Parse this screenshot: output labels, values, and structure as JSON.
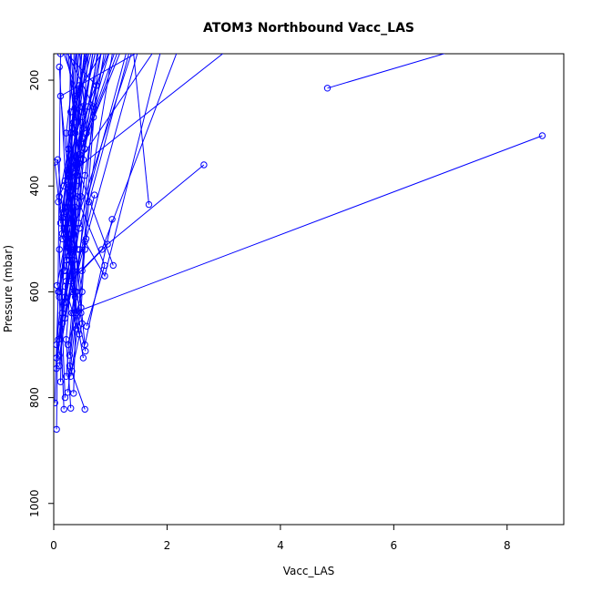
{
  "chart_data": {
    "type": "line",
    "title": "ATOM3 Northbound Vacc_LAS",
    "xlabel": "Vacc_LAS",
    "ylabel": "Pressure (mbar)",
    "xlim": [
      0,
      9
    ],
    "ylim": [
      1040,
      150
    ],
    "y_inverted": true,
    "x_ticks": [
      0,
      2,
      4,
      6,
      8
    ],
    "y_ticks": [
      200,
      400,
      600,
      800,
      1000
    ],
    "grid": false,
    "line_color": "#0000ff",
    "marker": "open-circle",
    "series": [
      {
        "x": [
          0.05,
          0.12,
          0.4
        ],
        "y": [
          860,
          150,
          130
        ]
      },
      {
        "x": [
          8.62,
          0.35,
          0.42
        ],
        "y": [
          305,
          640,
          110
        ]
      },
      {
        "x": [
          4.83,
          7.2
        ],
        "y": [
          215,
          140
        ]
      },
      {
        "x": [
          2.65,
          0.95,
          0.5,
          0.75,
          0.15
        ],
        "y": [
          360,
          510,
          560,
          210,
          140
        ]
      },
      {
        "x": [
          1.68,
          1.4,
          0.3
        ],
        "y": [
          435,
          140,
          500
        ]
      },
      {
        "x": [
          1.03,
          0.55,
          0.12,
          1.6
        ],
        "y": [
          463,
          700,
          230,
          140
        ]
      },
      {
        "x": [
          1.05,
          0.4,
          1.8
        ],
        "y": [
          550,
          360,
          140
        ]
      },
      {
        "x": [
          0.72,
          0.2,
          0.45,
          1.3
        ],
        "y": [
          417,
          650,
          480,
          140
        ]
      },
      {
        "x": [
          0.58,
          0.9,
          0.25,
          3.1
        ],
        "y": [
          665,
          550,
          380,
          140
        ]
      },
      {
        "x": [
          0.55,
          0.28,
          0.7,
          0.2
        ],
        "y": [
          822,
          740,
          250,
          140
        ]
      },
      {
        "x": [
          0.3,
          0.22,
          0.5,
          0.95
        ],
        "y": [
          820,
          690,
          310,
          140
        ]
      },
      {
        "x": [
          0.2,
          0.1,
          0.38,
          0.25
        ],
        "y": [
          800,
          520,
          300,
          140
        ]
      },
      {
        "x": [
          0.18,
          0.1,
          0.5,
          0.7
        ],
        "y": [
          822,
          610,
          280,
          140
        ]
      },
      {
        "x": [
          0.02,
          0.08,
          0.3,
          0.5,
          0.15
        ],
        "y": [
          810,
          600,
          470,
          250,
          140
        ]
      },
      {
        "x": [
          0.35,
          0.4,
          0.15,
          0.85
        ],
        "y": [
          792,
          600,
          460,
          140
        ]
      },
      {
        "x": [
          0.1,
          0.35,
          0.2,
          1.0
        ],
        "y": [
          720,
          560,
          440,
          140
        ]
      },
      {
        "x": [
          0.05,
          0.22,
          0.28,
          0.4
        ],
        "y": [
          745,
          580,
          410,
          140
        ]
      },
      {
        "x": [
          0.08,
          0.3,
          0.42,
          1.1
        ],
        "y": [
          690,
          520,
          350,
          140
        ]
      },
      {
        "x": [
          0.12,
          0.18,
          0.55,
          0.2
        ],
        "y": [
          770,
          480,
          330,
          140
        ]
      },
      {
        "x": [
          0.02,
          0.15,
          0.3,
          0.65
        ],
        "y": [
          355,
          490,
          260,
          140
        ]
      },
      {
        "x": [
          0.07,
          0.16,
          0.33,
          0.6
        ],
        "y": [
          350,
          450,
          290,
          140
        ]
      },
      {
        "x": [
          0.1,
          0.28,
          0.36
        ],
        "y": [
          175,
          530,
          140
        ]
      },
      {
        "x": [
          0.06,
          0.26,
          0.45,
          1.2
        ],
        "y": [
          588,
          470,
          340,
          140
        ]
      },
      {
        "x": [
          0.3,
          0.48,
          0.3,
          0.55
        ],
        "y": [
          760,
          630,
          420,
          140
        ]
      },
      {
        "x": [
          0.15,
          0.35,
          0.55,
          0.9
        ],
        "y": [
          640,
          540,
          380,
          140
        ]
      },
      {
        "x": [
          0.4,
          0.55,
          0.62,
          1.35
        ],
        "y": [
          670,
          520,
          430,
          140
        ]
      },
      {
        "x": [
          0.45,
          0.2,
          0.48,
          0.3
        ],
        "y": [
          680,
          590,
          420,
          140
        ]
      },
      {
        "x": [
          0.25,
          0.5,
          0.2,
          0.75
        ],
        "y": [
          700,
          600,
          390,
          140
        ]
      },
      {
        "x": [
          0.52,
          0.33,
          0.57,
          1.5
        ],
        "y": [
          725,
          600,
          500,
          140
        ]
      },
      {
        "x": [
          0.56,
          0.3,
          0.85,
          2.2
        ],
        "y": [
          712,
          580,
          520,
          140
        ]
      },
      {
        "x": [
          0.48,
          0.55,
          0.9,
          1.9
        ],
        "y": [
          640,
          505,
          570,
          140
        ]
      },
      {
        "x": [
          0.32,
          0.5,
          0.2,
          0.6
        ],
        "y": [
          750,
          660,
          480,
          140
        ]
      },
      {
        "x": [
          0.05,
          0.2,
          0.35,
          0.58,
          0.45
        ],
        "y": [
          725,
          610,
          520,
          300,
          140
        ]
      },
      {
        "x": [
          0.1,
          0.3,
          0.22,
          0.4
        ],
        "y": [
          600,
          410,
          300,
          140
        ]
      },
      {
        "x": [
          0.2,
          0.38,
          0.26,
          0.5
        ],
        "y": [
          560,
          440,
          330,
          140
        ]
      },
      {
        "x": [
          0.15,
          0.42,
          0.35,
          0.68
        ],
        "y": [
          500,
          380,
          280,
          140
        ]
      },
      {
        "x": [
          0.22,
          0.1,
          0.48,
          0.8
        ],
        "y": [
          540,
          420,
          320,
          140
        ]
      },
      {
        "x": [
          0.28,
          0.4,
          0.3,
          0.58
        ],
        "y": [
          520,
          400,
          300,
          140
        ]
      },
      {
        "x": [
          0.12,
          0.24,
          0.5,
          0.75
        ],
        "y": [
          470,
          370,
          260,
          140
        ]
      },
      {
        "x": [
          0.08,
          0.26,
          0.38,
          0.9
        ],
        "y": [
          430,
          330,
          230,
          140
        ]
      },
      {
        "x": [
          0.18,
          0.3,
          0.45,
          0.65
        ],
        "y": [
          400,
          300,
          210,
          140
        ]
      },
      {
        "x": [
          0.35,
          0.25,
          0.6,
          1.0
        ],
        "y": [
          490,
          380,
          250,
          140
        ]
      },
      {
        "x": [
          0.42,
          0.3,
          0.7,
          1.15
        ],
        "y": [
          520,
          410,
          270,
          140
        ]
      },
      {
        "x": [
          0.2,
          0.36,
          0.28,
          0.55
        ],
        "y": [
          620,
          520,
          400,
          140
        ]
      },
      {
        "x": [
          0.05,
          0.18,
          0.25,
          0.3
        ],
        "y": [
          700,
          560,
          440,
          140
        ]
      },
      {
        "x": [
          0.3,
          0.44,
          0.52,
          0.85
        ],
        "y": [
          580,
          470,
          350,
          140
        ]
      },
      {
        "x": [
          0.38,
          0.22,
          0.4,
          0.7
        ],
        "y": [
          610,
          500,
          380,
          140
        ]
      },
      {
        "x": [
          0.25,
          0.4,
          0.35,
          0.62
        ],
        "y": [
          790,
          640,
          460,
          140
        ]
      },
      {
        "x": [
          0.1,
          0.22,
          0.3,
          0.5
        ],
        "y": [
          740,
          620,
          500,
          140
        ]
      },
      {
        "x": [
          0.15,
          0.28,
          0.42,
          0.78
        ],
        "y": [
          660,
          540,
          420,
          140
        ]
      },
      {
        "x": [
          0.28,
          0.38,
          0.2,
          0.45
        ],
        "y": [
          720,
          600,
          470,
          140
        ]
      },
      {
        "x": [
          0.22,
          0.32,
          0.46,
          1.05
        ],
        "y": [
          760,
          640,
          520,
          140
        ]
      }
    ]
  }
}
